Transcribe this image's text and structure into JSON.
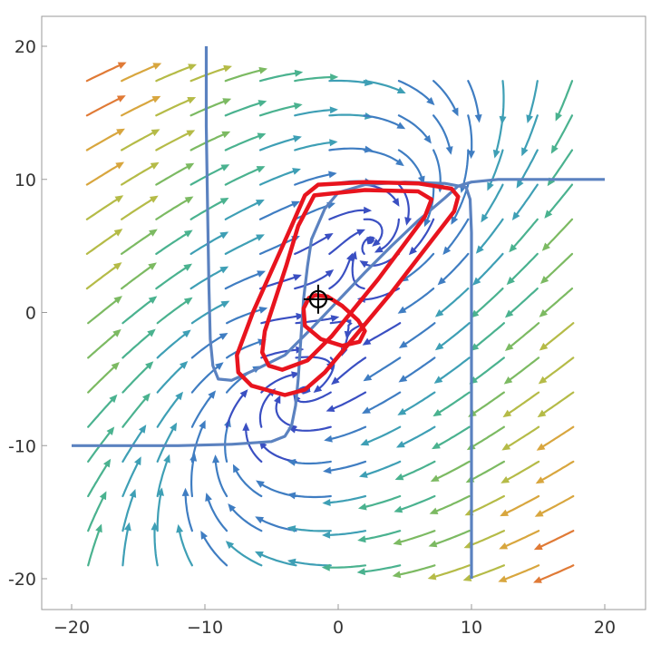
{
  "chart_data": {
    "type": "streamplot",
    "title": "",
    "xlabel": "",
    "ylabel": "",
    "xlim": [
      -22,
      22
    ],
    "ylim": [
      -22,
      22
    ],
    "x_ticks": [
      -20,
      -10,
      0,
      10,
      20
    ],
    "y_ticks": [
      -20,
      -10,
      0,
      10,
      20
    ],
    "x_tick_labels": [
      "−20",
      "−10",
      "0",
      "10",
      "20"
    ],
    "y_tick_labels": [
      "-20",
      "-10",
      "0",
      "10",
      "20"
    ],
    "grid": false,
    "legend": "none",
    "stream_colormap": "rainbow (blue = low speed, red = high speed)",
    "colors": {
      "nullcline": "#5b82c0",
      "limit_cycle": "#e8141e",
      "equilibrium_marker": "#000000",
      "frame": "#9a9a9a"
    },
    "nullclines": [
      {
        "name": "",
        "points": [
          [
            -9.9,
            20
          ],
          [
            -9.9,
            14
          ],
          [
            -9.8,
            8
          ],
          [
            -9.7,
            2
          ],
          [
            -9.6,
            -2
          ],
          [
            -9.4,
            -4
          ],
          [
            -9.0,
            -5
          ],
          [
            -8.0,
            -5.1
          ],
          [
            -6,
            -4.2
          ],
          [
            -4,
            -3.2
          ],
          [
            -2,
            -1.2
          ],
          [
            0,
            0.9
          ],
          [
            2,
            3.0
          ],
          [
            4,
            5.0
          ],
          [
            6,
            6.9
          ],
          [
            8,
            8.6
          ],
          [
            9,
            9.5
          ],
          [
            10,
            9.8
          ],
          [
            12,
            10
          ],
          [
            16,
            10
          ],
          [
            20,
            10
          ]
        ]
      },
      {
        "name": "",
        "points": [
          [
            -20,
            -10
          ],
          [
            -16,
            -10
          ],
          [
            -12,
            -10
          ],
          [
            -8,
            -9.9
          ],
          [
            -5,
            -9.7
          ],
          [
            -4,
            -9.3
          ],
          [
            -3.5,
            -8.5
          ],
          [
            -3.2,
            -7
          ],
          [
            -3.0,
            -5
          ],
          [
            -2.8,
            -2
          ],
          [
            -2.6,
            1
          ],
          [
            -2.3,
            3.5
          ],
          [
            -2,
            5.5
          ],
          [
            -1,
            7.8
          ],
          [
            0,
            9.0
          ],
          [
            2,
            9.6
          ],
          [
            5,
            9.8
          ],
          [
            8,
            9.7
          ],
          [
            9.6,
            9.4
          ],
          [
            9.9,
            8.5
          ],
          [
            10,
            6
          ],
          [
            10,
            0
          ],
          [
            10,
            -10
          ],
          [
            10,
            -20
          ]
        ]
      }
    ],
    "limit_cycle": {
      "outer": [
        [
          -1.5,
          9.6
        ],
        [
          2,
          9.8
        ],
        [
          6,
          9.7
        ],
        [
          8.5,
          9.3
        ],
        [
          9,
          8.7
        ],
        [
          8.7,
          7.6
        ],
        [
          4,
          1.5
        ],
        [
          -1,
          -4.5
        ],
        [
          -2.5,
          -5.8
        ],
        [
          -4,
          -6.2
        ],
        [
          -6.5,
          -5.5
        ],
        [
          -7.5,
          -4.5
        ],
        [
          -7.6,
          -3.2
        ],
        [
          -6.4,
          0
        ],
        [
          -3.5,
          6.5
        ],
        [
          -2.5,
          8.8
        ],
        [
          -1.5,
          9.6
        ]
      ],
      "middle": [
        [
          -1.8,
          8.8
        ],
        [
          2,
          9.2
        ],
        [
          6,
          9.1
        ],
        [
          7,
          8.5
        ],
        [
          6.5,
          7.2
        ],
        [
          3,
          2.5
        ],
        [
          -0.5,
          -1.8
        ],
        [
          -2.3,
          -3.6
        ],
        [
          -4.2,
          -4.3
        ],
        [
          -5.2,
          -4.0
        ],
        [
          -5.7,
          -3.0
        ],
        [
          -5.5,
          -1.4
        ],
        [
          -3.9,
          3.5
        ],
        [
          -3.0,
          6.5
        ],
        [
          -1.8,
          8.8
        ]
      ],
      "inner": [
        [
          -1.7,
          1.3
        ],
        [
          -0.8,
          1.2
        ],
        [
          0.3,
          0.5
        ],
        [
          1.5,
          -0.6
        ],
        [
          2.0,
          -1.4
        ],
        [
          1.6,
          -2.2
        ],
        [
          0.3,
          -2.5
        ],
        [
          -1.3,
          -2.0
        ],
        [
          -2.5,
          -1.0
        ],
        [
          -2.6,
          0.3
        ],
        [
          -2.2,
          1.1
        ],
        [
          -1.7,
          1.3
        ]
      ]
    },
    "equilibrium": {
      "x": -1.5,
      "y": 1.0
    }
  }
}
